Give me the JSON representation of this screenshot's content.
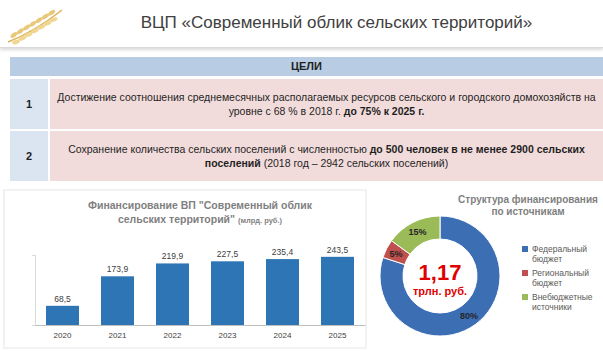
{
  "header": {
    "title": "ВЦП «Современный облик сельских территорий»"
  },
  "goals": {
    "title": "ЦЕЛИ",
    "rows": [
      {
        "number": 1,
        "parts": [
          {
            "text": "Достижение соотношения среднемесячных располагаемых ресурсов сельского и городского домохозяйств на уровне с 68 % в 2018 г. ",
            "bold": false
          },
          {
            "text": "до 75% к 2025 г.",
            "bold": true
          }
        ]
      },
      {
        "number": 2,
        "parts": [
          {
            "text": "Сохранение количества сельских поселений с численностью ",
            "bold": false
          },
          {
            "text": "до 500 человек в не менее 2900 сельских поселений",
            "bold": true
          },
          {
            "text": " (2018 год – 2942 сельских поселений)",
            "bold": false
          }
        ]
      }
    ]
  },
  "chart_data": [
    {
      "type": "bar",
      "title": "Финансирование ВП \"Современный облик сельских территорий\"",
      "subtitle": "(млрд. руб.)",
      "categories": [
        "2020",
        "2021",
        "2022",
        "2023",
        "2024",
        "2025"
      ],
      "values": [
        68.5,
        173.9,
        219.9,
        227.5,
        235.4,
        243.5
      ],
      "value_labels": [
        "68,5",
        "173,9",
        "219,9",
        "227,5",
        "235,4",
        "243,5"
      ],
      "color": "#2e75b6",
      "ylim": [
        0,
        250
      ],
      "yticks": [
        0
      ],
      "data_labels": true,
      "tick_labels": "x"
    },
    {
      "type": "pie",
      "title": "Структура финансирования по источникам",
      "categories": [
        "Федеральный бюджет",
        "Региональный бюджет",
        "Внебюджетные источники"
      ],
      "values": [
        80,
        5,
        15
      ],
      "value_labels": [
        "80%",
        "5%",
        "15%"
      ],
      "colors": [
        "#3c6eb4",
        "#c0504d",
        "#9bbb59"
      ],
      "data_labels": true,
      "legend": "right",
      "annotations": [
        "1,17",
        "трлн. руб."
      ]
    }
  ]
}
